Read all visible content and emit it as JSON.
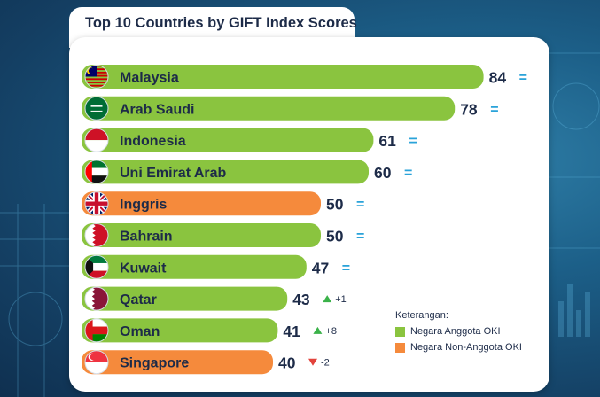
{
  "colors": {
    "oki": "#8ac43f",
    "non_oki": "#f58a3c",
    "text": "#1d2b48",
    "equal": "#2aa3d9",
    "up": "#3bb24a",
    "down": "#e2433c"
  },
  "chart_data": {
    "type": "bar",
    "orientation": "horizontal",
    "title": "Top 10 Countries by GIFT Index Scores",
    "categories": [
      "Malaysia",
      "Arab Saudi",
      "Indonesia",
      "Uni Emirat  Arab",
      "Inggris",
      "Bahrain",
      "Kuwait",
      "Qatar",
      "Oman",
      "Singapore"
    ],
    "values": [
      84,
      78,
      61,
      60,
      50,
      50,
      47,
      43,
      41,
      40
    ],
    "groups": [
      "oki",
      "oki",
      "oki",
      "oki",
      "non_oki",
      "oki",
      "oki",
      "oki",
      "oki",
      "non_oki"
    ],
    "flags": [
      "malaysia-flag-icon",
      "saudi-flag-icon",
      "indonesia-flag-icon",
      "uae-flag-icon",
      "uk-flag-icon",
      "bahrain-flag-icon",
      "kuwait-flag-icon",
      "qatar-flag-icon",
      "oman-flag-icon",
      "singapore-flag-icon"
    ],
    "changes": [
      {
        "type": "equal",
        "label": "="
      },
      {
        "type": "equal",
        "label": "="
      },
      {
        "type": "equal",
        "label": "="
      },
      {
        "type": "equal",
        "label": "="
      },
      {
        "type": "equal",
        "label": "="
      },
      {
        "type": "equal",
        "label": "="
      },
      {
        "type": "equal",
        "label": "="
      },
      {
        "type": "up",
        "label": "+1"
      },
      {
        "type": "up",
        "label": "+8"
      },
      {
        "type": "down",
        "label": "-2"
      }
    ],
    "legend": {
      "title": "Keterangan:",
      "items": [
        {
          "label": "Negara Anggota OKI",
          "group": "oki"
        },
        {
          "label": "Negara Non-Anggota OKI",
          "group": "non_oki"
        }
      ],
      "position": "bottom-right"
    }
  }
}
